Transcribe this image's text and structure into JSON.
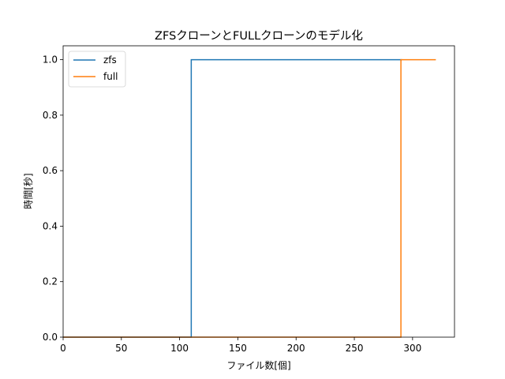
{
  "chart_data": {
    "type": "line",
    "title": "ZFSクローンとFULLクローンのモデル化",
    "xlabel": "ファイル数[個]",
    "ylabel": "時間[秒]",
    "xlim": [
      0,
      336
    ],
    "ylim": [
      0,
      1.05
    ],
    "xticks": [
      "0",
      "50",
      "100",
      "150",
      "200",
      "250",
      "300"
    ],
    "yticks": [
      "0.0",
      "0.2",
      "0.4",
      "0.6",
      "0.8",
      "1.0"
    ],
    "grid": false,
    "legend_position": "top-left",
    "series": [
      {
        "name": "zfs",
        "color": "#1f77b4",
        "x": [
          0,
          110,
          110,
          291
        ],
        "y": [
          0,
          0,
          1,
          1
        ]
      },
      {
        "name": "full",
        "color": "#ff7f0e",
        "x": [
          0,
          290,
          290,
          320
        ],
        "y": [
          0,
          0,
          1,
          1
        ]
      }
    ]
  }
}
